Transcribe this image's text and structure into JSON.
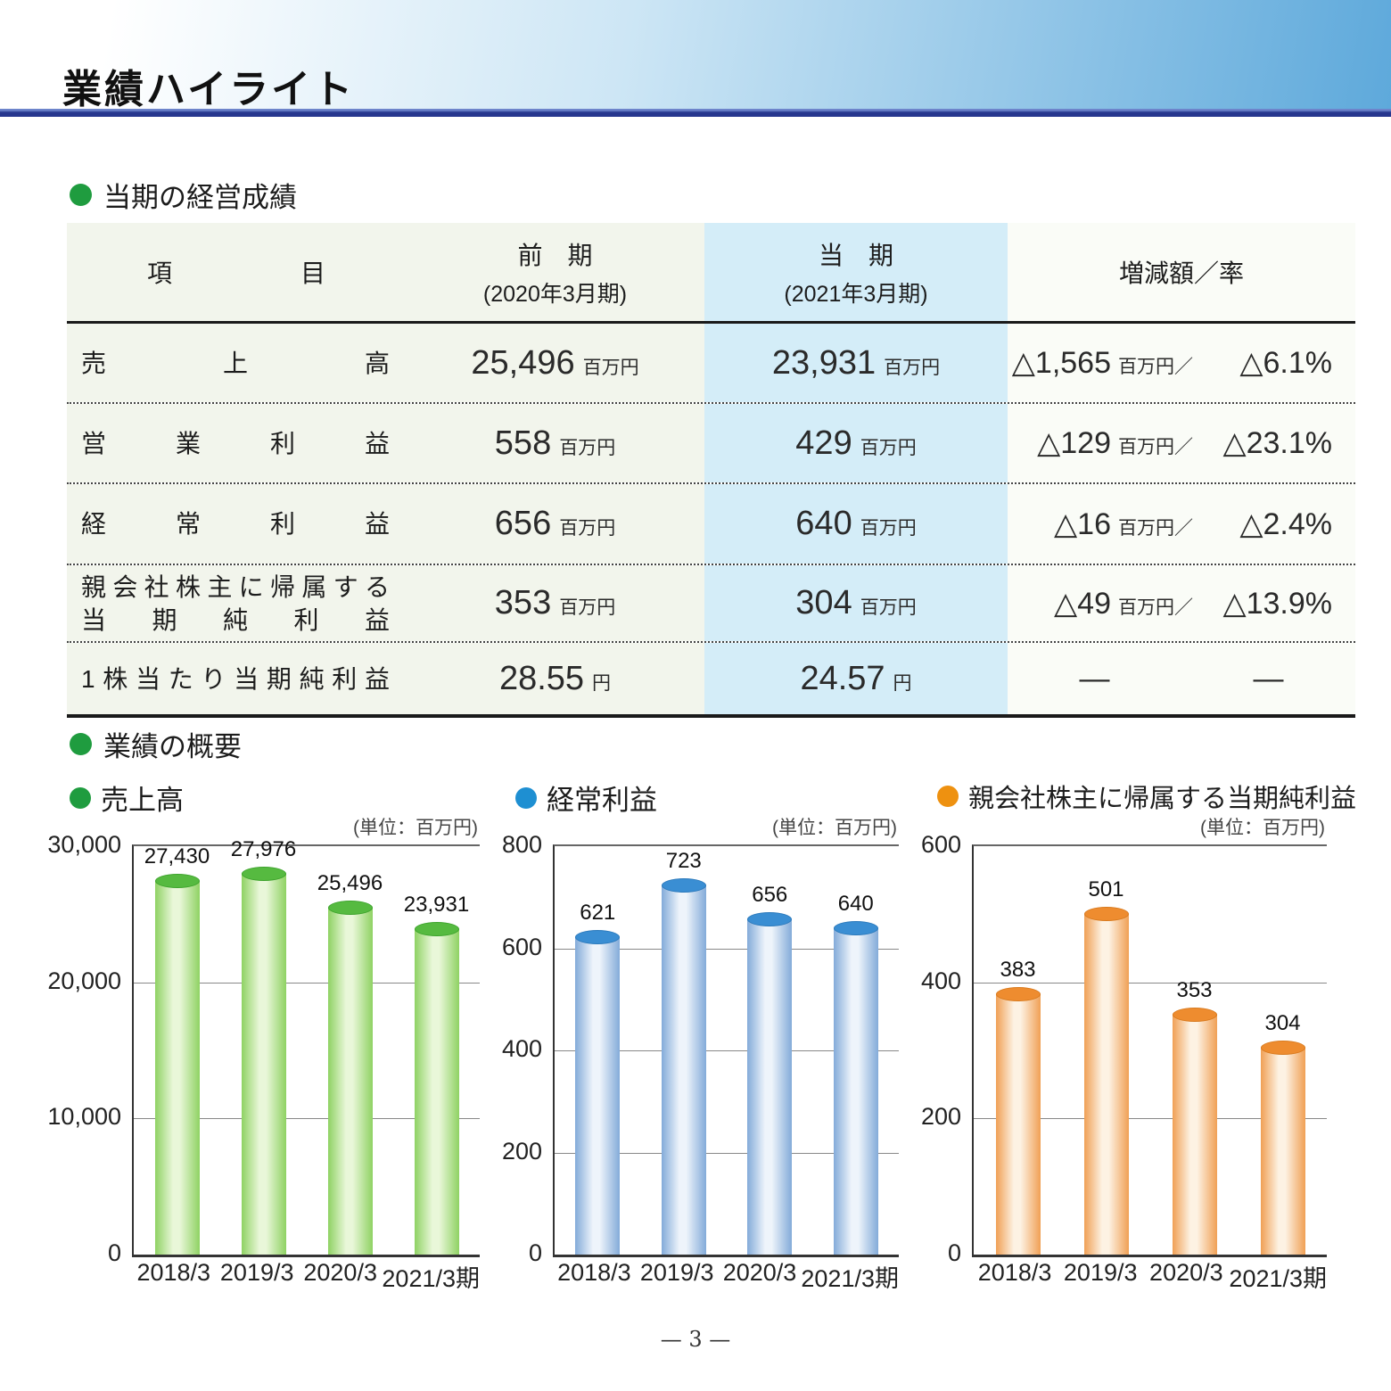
{
  "header": {
    "title": "業績ハイライト"
  },
  "sections": {
    "results_heading": "当期の経営成績",
    "overview_heading": "業績の概要"
  },
  "colors": {
    "header_gradient_start": "#ffffff",
    "header_gradient_mid": "#cde6f5",
    "header_gradient_end": "#5ea9db",
    "rule_navy": "#27378e",
    "section_dot": "#1f9c3f",
    "table_bg": "#f2f5ec",
    "table_bg_current": "#d4edf8",
    "table_bg_change": "#fafcf7"
  },
  "table": {
    "col_headers": {
      "item": "項　目",
      "prev_title": "前　期",
      "prev_sub": "(2020年3月期)",
      "curr_title": "当　期",
      "curr_sub": "(2021年3月期)",
      "change": "増減額／率"
    },
    "rows": [
      {
        "label_lines": [
          "売　上　高"
        ],
        "prev": "25,496",
        "prev_unit": "百万円",
        "curr": "23,931",
        "curr_unit": "百万円",
        "change_amount": "△1,565",
        "change_unit": "百万円／",
        "change_rate": "△6.1%"
      },
      {
        "label_lines": [
          "営　業　利　益"
        ],
        "prev": "558",
        "prev_unit": "百万円",
        "curr": "429",
        "curr_unit": "百万円",
        "change_amount": "△129",
        "change_unit": "百万円／",
        "change_rate": "△23.1%"
      },
      {
        "label_lines": [
          "経　常　利　益"
        ],
        "prev": "656",
        "prev_unit": "百万円",
        "curr": "640",
        "curr_unit": "百万円",
        "change_amount": "△16",
        "change_unit": "百万円／",
        "change_rate": "△2.4%"
      },
      {
        "label_lines": [
          "親会社株主に帰属する",
          "当　期　純　利　益"
        ],
        "prev": "353",
        "prev_unit": "百万円",
        "curr": "304",
        "curr_unit": "百万円",
        "change_amount": "△49",
        "change_unit": "百万円／",
        "change_rate": "△13.9%"
      },
      {
        "label_lines": [
          "1株当たり当期純利益"
        ],
        "prev": "28.55",
        "prev_unit": "円",
        "curr": "24.57",
        "curr_unit": "円",
        "change_amount": "—",
        "change_unit": "",
        "change_rate": "—"
      }
    ]
  },
  "chart_data": [
    {
      "type": "bar",
      "title": "売上高",
      "unit_label": "(単位：百万円)",
      "categories": [
        "2018/3",
        "2019/3",
        "2020/3",
        "2021/3期"
      ],
      "values": [
        27430,
        27976,
        25496,
        23931
      ],
      "value_labels": [
        "27,430",
        "27,976",
        "25,496",
        "23,931"
      ],
      "ylim": [
        0,
        30000
      ],
      "yticks": [
        0,
        10000,
        20000,
        30000
      ],
      "ytick_labels": [
        "0",
        "10,000",
        "20,000",
        "30,000"
      ],
      "grid": true,
      "legend": "none",
      "dot_color": "#1f9c3f",
      "bar": {
        "cap": "#56ba40",
        "cap_border": "#3da32c",
        "edge": "#8fd263",
        "light": "#e9f7d9"
      }
    },
    {
      "type": "bar",
      "title": "経常利益",
      "unit_label": "(単位：百万円)",
      "categories": [
        "2018/3",
        "2019/3",
        "2020/3",
        "2021/3期"
      ],
      "values": [
        621,
        723,
        656,
        640
      ],
      "value_labels": [
        "621",
        "723",
        "656",
        "640"
      ],
      "ylim": [
        0,
        800
      ],
      "yticks": [
        0,
        200,
        400,
        600,
        800
      ],
      "ytick_labels": [
        "0",
        "200",
        "400",
        "600",
        "800"
      ],
      "grid": true,
      "legend": "none",
      "dot_color": "#1e8fd2",
      "bar": {
        "cap": "#3a8ed3",
        "cap_border": "#2b79bb",
        "edge": "#83abd9",
        "light": "#eef4fb"
      }
    },
    {
      "type": "bar",
      "title": "親会社株主に帰属する当期純利益",
      "unit_label": "(単位：百万円)",
      "categories": [
        "2018/3",
        "2019/3",
        "2020/3",
        "2021/3期"
      ],
      "values": [
        383,
        501,
        353,
        304
      ],
      "value_labels": [
        "383",
        "501",
        "353",
        "304"
      ],
      "ylim": [
        0,
        600
      ],
      "yticks": [
        0,
        200,
        400,
        600
      ],
      "ytick_labels": [
        "0",
        "200",
        "400",
        "600"
      ],
      "grid": true,
      "legend": "none",
      "dot_color": "#ee9110",
      "bar": {
        "cap": "#ee8c2f",
        "cap_border": "#d87a1e",
        "edge": "#f0a055",
        "light": "#fdf2e3"
      }
    }
  ],
  "footer": {
    "page_number": "— 3 —"
  }
}
